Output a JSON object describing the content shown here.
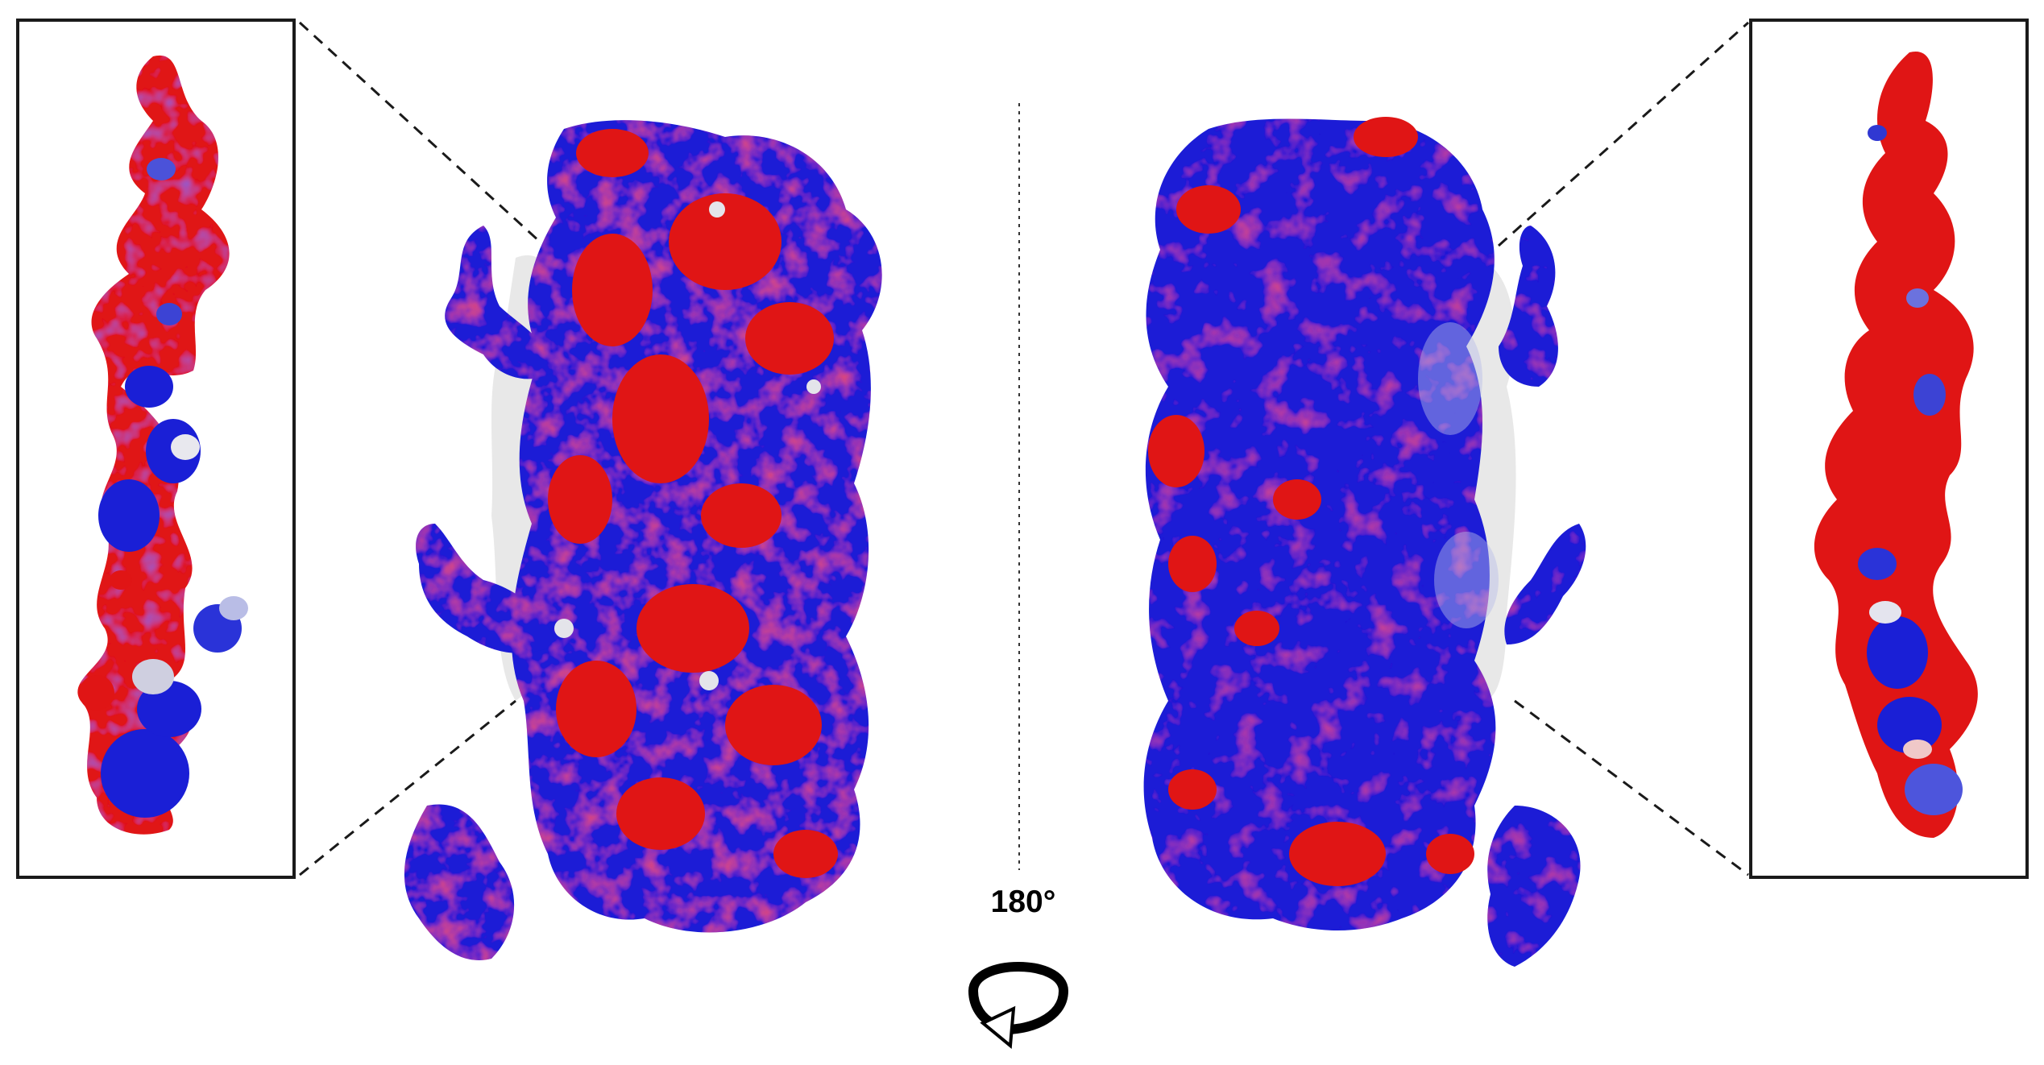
{
  "figure": {
    "rotation_label": "180°"
  },
  "colors": {
    "positive_potential": "#1a1fd6",
    "negative_potential": "#e01515",
    "neutral": "#dcdcdc",
    "frame": "#1a1a1a",
    "background": "#ffffff"
  },
  "panels": {
    "left_inset": {
      "content": "peptide-surface-electrostatics"
    },
    "left_molecule": {
      "content": "protein-surface-front-view"
    },
    "right_molecule": {
      "content": "protein-surface-back-view"
    },
    "right_inset": {
      "content": "peptide-surface-electrostatics"
    }
  },
  "icons": [
    "rotation-arrow-icon"
  ]
}
